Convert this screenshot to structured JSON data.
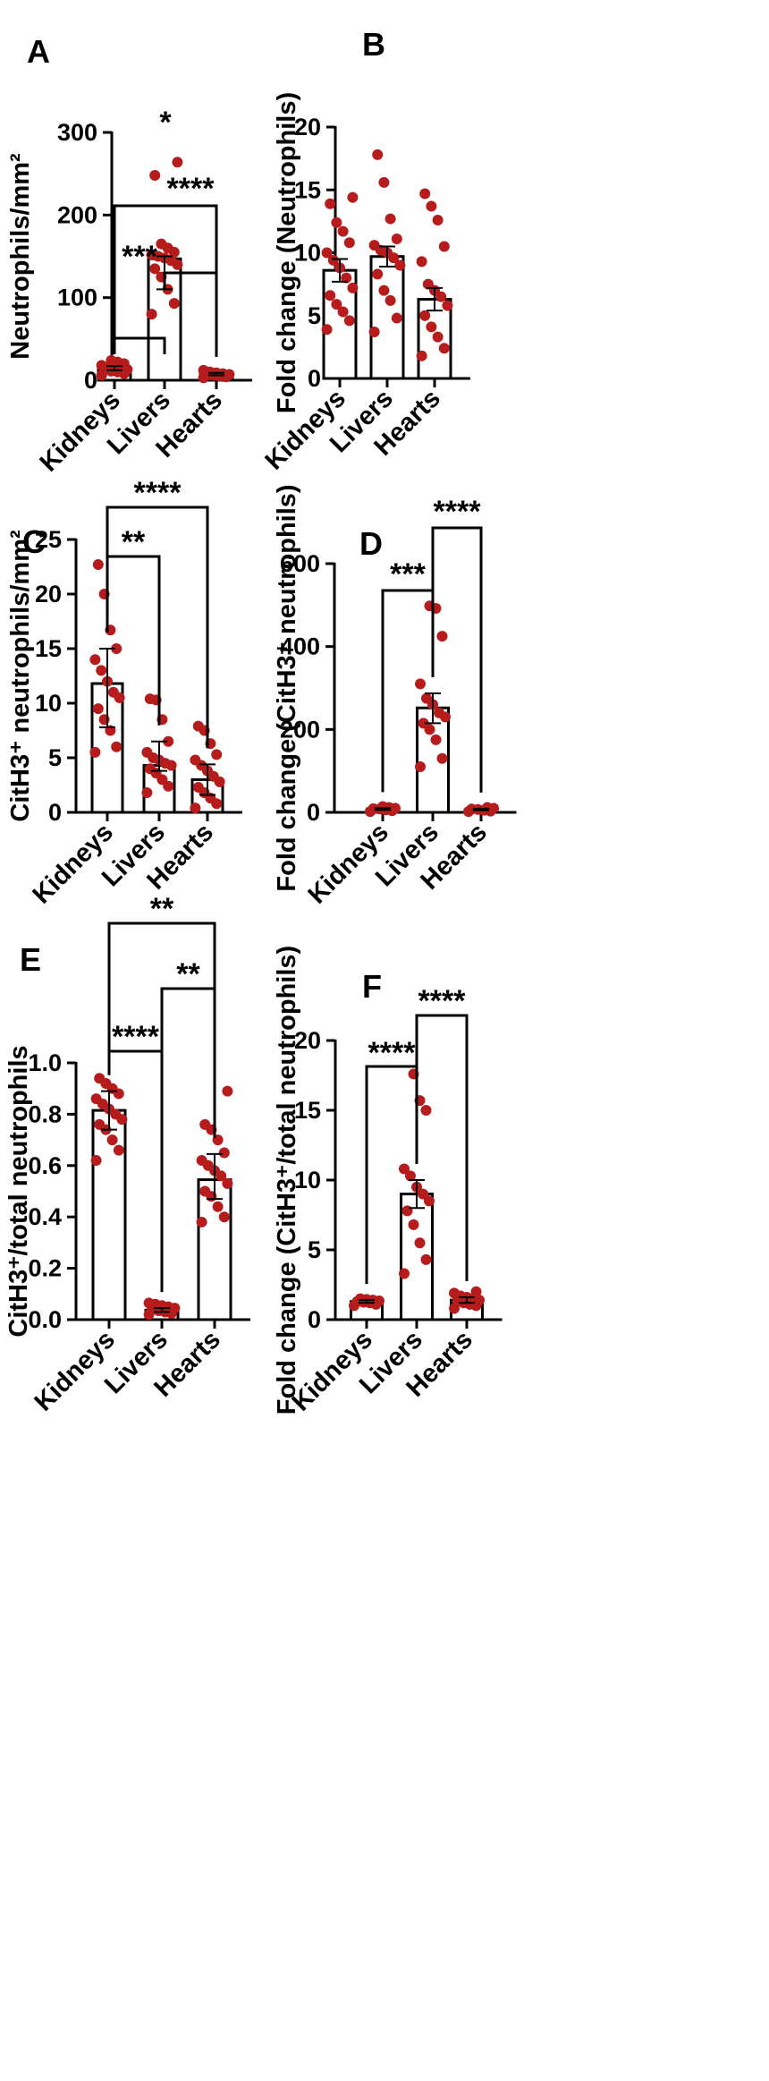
{
  "colors": {
    "point": "#b71c1c",
    "axis": "#000000",
    "bar_fill": "#ffffff"
  },
  "chart_data": [
    {
      "panel": "A",
      "type": "bar",
      "categories": [
        "Kidneys",
        "Livers",
        "Hearts"
      ],
      "ylabel": "Neutrophils/mm²",
      "ylim": [
        0,
        300
      ],
      "yticks": [
        0,
        100,
        200,
        300
      ],
      "means": [
        14,
        147,
        7
      ],
      "errors": [
        [
          12,
          17
        ],
        [
          110,
          150
        ],
        [
          6,
          9
        ]
      ],
      "points": [
        [
          6,
          8,
          10,
          11,
          12,
          13,
          14,
          15,
          16,
          18,
          20,
          22,
          24
        ],
        [
          80,
          93,
          110,
          125,
          135,
          140,
          145,
          148,
          150,
          152,
          155,
          160,
          165,
          248,
          264
        ],
        [
          3,
          4,
          5,
          6,
          6,
          7,
          8,
          9,
          10,
          12
        ]
      ],
      "significance": [
        {
          "from": 0,
          "to": 1,
          "label": "***"
        },
        {
          "from": 1,
          "to": 2,
          "label": "****"
        },
        {
          "from": 0,
          "to": 2,
          "label": "*"
        }
      ]
    },
    {
      "panel": "B",
      "type": "bar",
      "categories": [
        "Kidneys",
        "Livers",
        "Hearts"
      ],
      "ylabel": "Fold change  (Neutrophils)",
      "ylim": [
        0,
        20
      ],
      "yticks": [
        0,
        5,
        10,
        15,
        20
      ],
      "means": [
        8.6,
        9.7,
        6.3
      ],
      "errors": [
        [
          7.7,
          9.5
        ],
        [
          8.9,
          10.5
        ],
        [
          5.4,
          7.2
        ]
      ],
      "points": [
        [
          3.9,
          4.6,
          5.3,
          5.9,
          6.6,
          7.2,
          8.0,
          8.8,
          9.4,
          10.0,
          10.8,
          11.7,
          12.4,
          13.9,
          14.4
        ],
        [
          3.7,
          4.8,
          6.2,
          7.0,
          8.3,
          9.0,
          9.6,
          10.0,
          10.2,
          10.6,
          11.1,
          12.7,
          15.6,
          17.8
        ],
        [
          1.8,
          2.4,
          3.3,
          4.1,
          5.0,
          5.8,
          6.5,
          7.0,
          7.5,
          9.3,
          10.5,
          12.6,
          13.7,
          14.7
        ]
      ],
      "significance": []
    },
    {
      "panel": "C",
      "type": "bar",
      "categories": [
        "Kidneys",
        "Livers",
        "Hearts"
      ],
      "ylabel": "CitH3⁺ neutrophils/mm²",
      "ylim": [
        0,
        25
      ],
      "yticks": [
        0,
        5,
        10,
        15,
        20,
        25
      ],
      "means": [
        11.8,
        4.3,
        3.0
      ],
      "errors": [
        [
          7.8,
          15.0
        ],
        [
          3.8,
          6.5
        ],
        [
          1.6,
          4.4
        ]
      ],
      "points": [
        [
          5.5,
          6.0,
          7.5,
          8.5,
          9.5,
          10.5,
          11.0,
          12.0,
          13.0,
          14.0,
          15.0,
          16.7,
          20.0,
          22.7
        ],
        [
          1.8,
          2.4,
          3.0,
          3.6,
          4.0,
          4.3,
          4.5,
          4.8,
          5.0,
          5.5,
          6.5,
          8.5,
          10.3,
          10.4
        ],
        [
          0.4,
          0.8,
          1.3,
          1.8,
          2.3,
          2.8,
          3.3,
          3.8,
          4.3,
          4.8,
          5.3,
          6.3,
          7.5,
          7.9
        ]
      ],
      "significance": [
        {
          "from": 0,
          "to": 1,
          "label": "**"
        },
        {
          "from": 0,
          "to": 2,
          "label": "****"
        }
      ]
    },
    {
      "panel": "D",
      "type": "bar",
      "categories": [
        "Kidneys",
        "Livers",
        "Hearts"
      ],
      "ylabel": "Fold change (CitH3⁺ neutrophils)",
      "ylim": [
        0,
        600
      ],
      "yticks": [
        0,
        200,
        400,
        600
      ],
      "means": [
        8,
        252,
        7
      ],
      "errors": [
        [
          6,
          10
        ],
        [
          215,
          287
        ],
        [
          5,
          9
        ]
      ],
      "points": [
        [
          2,
          4,
          6,
          8,
          9,
          10,
          12,
          14
        ],
        [
          110,
          130,
          175,
          200,
          215,
          230,
          240,
          260,
          275,
          310,
          425,
          492,
          498
        ],
        [
          2,
          3,
          5,
          7,
          8,
          10,
          12
        ]
      ],
      "significance": [
        {
          "from": 0,
          "to": 1,
          "label": "***"
        },
        {
          "from": 1,
          "to": 2,
          "label": "****"
        }
      ]
    },
    {
      "panel": "E",
      "type": "bar",
      "categories": [
        "Kidneys",
        "Livers",
        "Hearts"
      ],
      "ylabel": "CitH3⁺/total neutrophils",
      "ylim": [
        0,
        1.0
      ],
      "yticks": [
        0.0,
        0.2,
        0.4,
        0.6,
        0.8,
        1.0
      ],
      "means": [
        0.815,
        0.037,
        0.545
      ],
      "errors": [
        [
          0.74,
          0.89
        ],
        [
          0.03,
          0.045
        ],
        [
          0.47,
          0.645
        ]
      ],
      "points": [
        [
          0.62,
          0.66,
          0.7,
          0.74,
          0.76,
          0.78,
          0.8,
          0.82,
          0.84,
          0.86,
          0.88,
          0.9,
          0.92,
          0.94
        ],
        [
          0.02,
          0.025,
          0.03,
          0.035,
          0.04,
          0.045,
          0.05,
          0.055,
          0.06,
          0.065
        ],
        [
          0.38,
          0.4,
          0.44,
          0.48,
          0.5,
          0.53,
          0.56,
          0.58,
          0.6,
          0.62,
          0.65,
          0.7,
          0.74,
          0.76,
          0.89
        ]
      ],
      "significance": [
        {
          "from": 0,
          "to": 1,
          "label": "****"
        },
        {
          "from": 1,
          "to": 2,
          "label": "**"
        },
        {
          "from": 0,
          "to": 2,
          "label": "**"
        }
      ]
    },
    {
      "panel": "F",
      "type": "bar",
      "categories": [
        "Kidneys",
        "Livers",
        "Hearts"
      ],
      "ylabel": "Fold change (CitH3⁺/total neutrophils)",
      "ylim": [
        0,
        20
      ],
      "yticks": [
        0,
        5,
        10,
        15,
        20
      ],
      "means": [
        1.3,
        9.0,
        1.4
      ],
      "errors": [
        [
          1.2,
          1.4
        ],
        [
          8.0,
          10.0
        ],
        [
          1.2,
          1.6
        ]
      ],
      "points": [
        [
          1.0,
          1.1,
          1.2,
          1.25,
          1.3,
          1.35,
          1.4,
          1.45,
          1.5
        ],
        [
          3.3,
          4.3,
          5.5,
          6.8,
          7.8,
          8.5,
          9.0,
          9.5,
          10.3,
          10.8,
          15.0,
          15.7,
          17.6
        ],
        [
          0.8,
          1.0,
          1.1,
          1.2,
          1.3,
          1.4,
          1.5,
          1.6,
          1.7,
          1.9,
          2.0
        ]
      ],
      "significance": [
        {
          "from": 0,
          "to": 1,
          "label": "****"
        },
        {
          "from": 1,
          "to": 2,
          "label": "****"
        }
      ]
    }
  ]
}
